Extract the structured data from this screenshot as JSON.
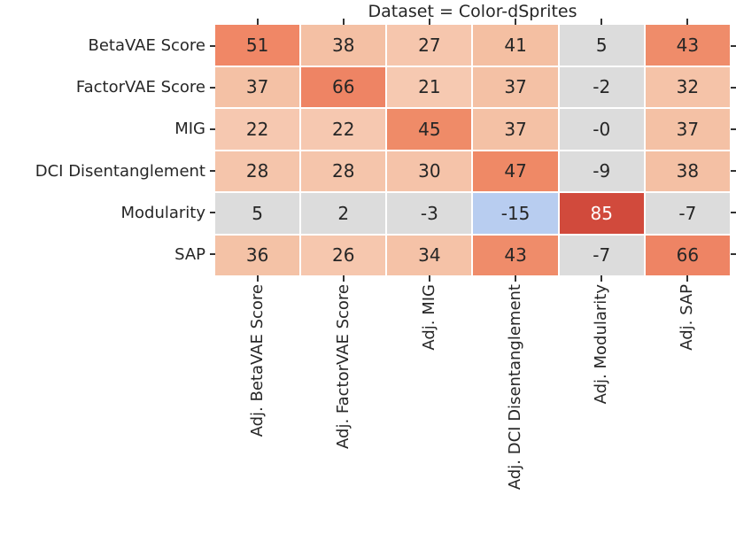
{
  "figure": {
    "background": "#ffffff",
    "text_color": "#262626",
    "tick_color": "#333333",
    "gridline_color": "#ffffff"
  },
  "chart_data": {
    "type": "heatmap",
    "title": "Dataset = Color-dSprites",
    "rows": [
      "BetaVAE Score",
      "FactorVAE Score",
      "MIG",
      "DCI Disentanglement",
      "Modularity",
      "SAP"
    ],
    "columns": [
      "Adj. BetaVAE Score",
      "Adj. FactorVAE Score",
      "Adj. MIG",
      "Adj. DCI Disentanglement",
      "Adj. Modularity",
      "Adj. SAP"
    ],
    "values": [
      [
        51,
        38,
        27,
        41,
        5,
        43
      ],
      [
        37,
        66,
        21,
        37,
        -2,
        32
      ],
      [
        22,
        22,
        45,
        37,
        0,
        37
      ],
      [
        28,
        28,
        30,
        47,
        -9,
        38
      ],
      [
        5,
        2,
        -3,
        -15,
        85,
        -7
      ],
      [
        36,
        26,
        34,
        43,
        -7,
        66
      ]
    ],
    "cell_labels": [
      [
        "51",
        "38",
        "27",
        "41",
        "5",
        "43"
      ],
      [
        "37",
        "66",
        "21",
        "37",
        "-2",
        "32"
      ],
      [
        "22",
        "22",
        "45",
        "37",
        "-0",
        "37"
      ],
      [
        "28",
        "28",
        "30",
        "47",
        "-9",
        "38"
      ],
      [
        "5",
        "2",
        "-3",
        "-15",
        "85",
        "-7"
      ],
      [
        "36",
        "26",
        "34",
        "43",
        "-7",
        "66"
      ]
    ],
    "cell_colors": [
      [
        "#f08766",
        "#f4c0a4",
        "#f6c6ad",
        "#f4bfa2",
        "#dcdcdc",
        "#ef8c6a"
      ],
      [
        "#f4c1a5",
        "#ee8464",
        "#f6c9b1",
        "#f4c1a5",
        "#dcdcdc",
        "#f5c3a8"
      ],
      [
        "#f6c8b0",
        "#f6c8b0",
        "#ef8b68",
        "#f4c1a5",
        "#dcdcdc",
        "#f4c1a5"
      ],
      [
        "#f5c5ab",
        "#f5c5ab",
        "#f5c3a9",
        "#ef8966",
        "#dcdcdc",
        "#f4c0a4"
      ],
      [
        "#dcdcdc",
        "#dcdcdc",
        "#dcdcdc",
        "#b8cdf0",
        "#d14a3c",
        "#dcdcdc"
      ],
      [
        "#f4c2a6",
        "#f6c7ae",
        "#f5c2a7",
        "#ef8c6a",
        "#dcdcdc",
        "#ee8464"
      ]
    ],
    "cell_text_colors": [
      [
        "#262626",
        "#262626",
        "#262626",
        "#262626",
        "#262626",
        "#262626"
      ],
      [
        "#262626",
        "#262626",
        "#262626",
        "#262626",
        "#262626",
        "#262626"
      ],
      [
        "#262626",
        "#262626",
        "#262626",
        "#262626",
        "#262626",
        "#262626"
      ],
      [
        "#262626",
        "#262626",
        "#262626",
        "#262626",
        "#262626",
        "#262626"
      ],
      [
        "#262626",
        "#262626",
        "#262626",
        "#262626",
        "#ffffff",
        "#262626"
      ],
      [
        "#262626",
        "#262626",
        "#262626",
        "#262626",
        "#262626",
        "#262626"
      ]
    ],
    "palette": {
      "style": "coolwarm diverging (blue negative, gray neutral, orange/red positive)",
      "negative": "#b8cdf0",
      "neutral": "#dcdcdc",
      "positive": "#ee8464",
      "positive_max": "#d14a3c"
    },
    "legend_position": "none",
    "grid": "white 2px lines between cells"
  }
}
